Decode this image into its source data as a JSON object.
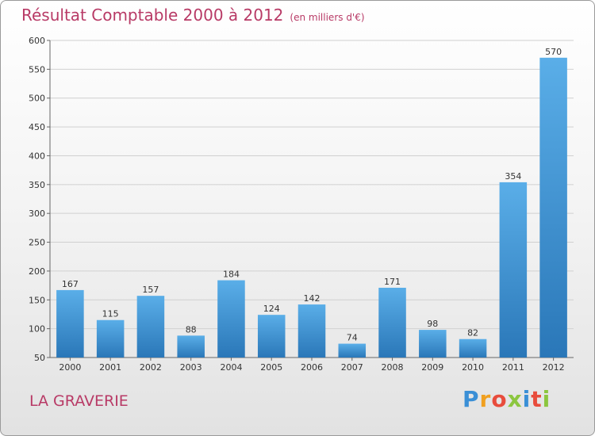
{
  "colors": {
    "accent": "#b83a66",
    "bar_top": "#5aaee8",
    "bar_bottom": "#2a77b8",
    "grid": "#d0d0d0"
  },
  "header": {
    "commune": "LA GRAVERIE"
  },
  "logo": {
    "letters": [
      "P",
      "r",
      "o",
      "x",
      "i",
      "t",
      "i"
    ],
    "colors": [
      "#3a8fd6",
      "#f0a020",
      "#e84c3c",
      "#8cc63f",
      "#3a8fd6",
      "#e84c3c",
      "#8cc63f"
    ]
  },
  "chart_data": {
    "type": "bar",
    "title": "Résultat Comptable 2000 à 2012",
    "subtitle": "(en milliers d'€)",
    "xlabel": "",
    "ylabel": "",
    "ylim": [
      50,
      600
    ],
    "yticks": [
      50,
      100,
      150,
      200,
      250,
      300,
      350,
      400,
      450,
      500,
      550,
      600
    ],
    "grid": true,
    "categories": [
      "2000",
      "2001",
      "2002",
      "2003",
      "2004",
      "2005",
      "2006",
      "2007",
      "2008",
      "2009",
      "2010",
      "2011",
      "2012"
    ],
    "values": [
      167,
      115,
      157,
      88,
      184,
      124,
      142,
      74,
      171,
      98,
      82,
      354,
      570
    ]
  }
}
